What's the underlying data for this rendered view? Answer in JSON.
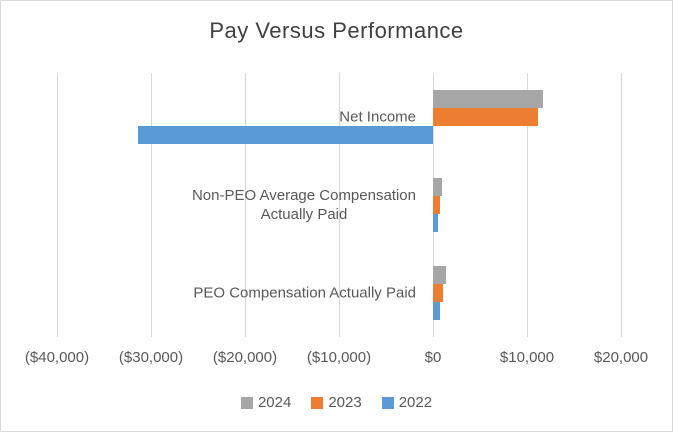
{
  "chart_data": {
    "type": "bar",
    "orientation": "horizontal",
    "title": "Pay Versus Performance",
    "categories": [
      "Net Income",
      "Non-PEO Average Compensation\nActually Paid",
      "PEO Compensation Actually Paid"
    ],
    "series": [
      {
        "name": "2024",
        "color": "#a6a6a6",
        "values": [
          11700,
          950,
          1400
        ]
      },
      {
        "name": "2023",
        "color": "#ed7d31",
        "values": [
          11200,
          700,
          1100
        ]
      },
      {
        "name": "2022",
        "color": "#5b9bd5",
        "values": [
          -31400,
          500,
          700
        ]
      }
    ],
    "x_axis": {
      "min": -40000,
      "max": 20000,
      "tick_values": [
        -40000,
        -30000,
        -20000,
        -10000,
        0,
        10000,
        20000
      ],
      "tick_labels": [
        "($40,000)",
        "($30,000)",
        "($20,000)",
        "($10,000)",
        "$0",
        "$10,000",
        "$20,000"
      ]
    },
    "legend": {
      "position": "bottom",
      "entries": [
        "2024",
        "2023",
        "2022"
      ]
    },
    "grid": true,
    "colors": {
      "grid": "#d9d9d9",
      "axis_text": "#595959",
      "title_text": "#404040",
      "background": "#ffffff",
      "border": "#d9d9d9"
    }
  }
}
